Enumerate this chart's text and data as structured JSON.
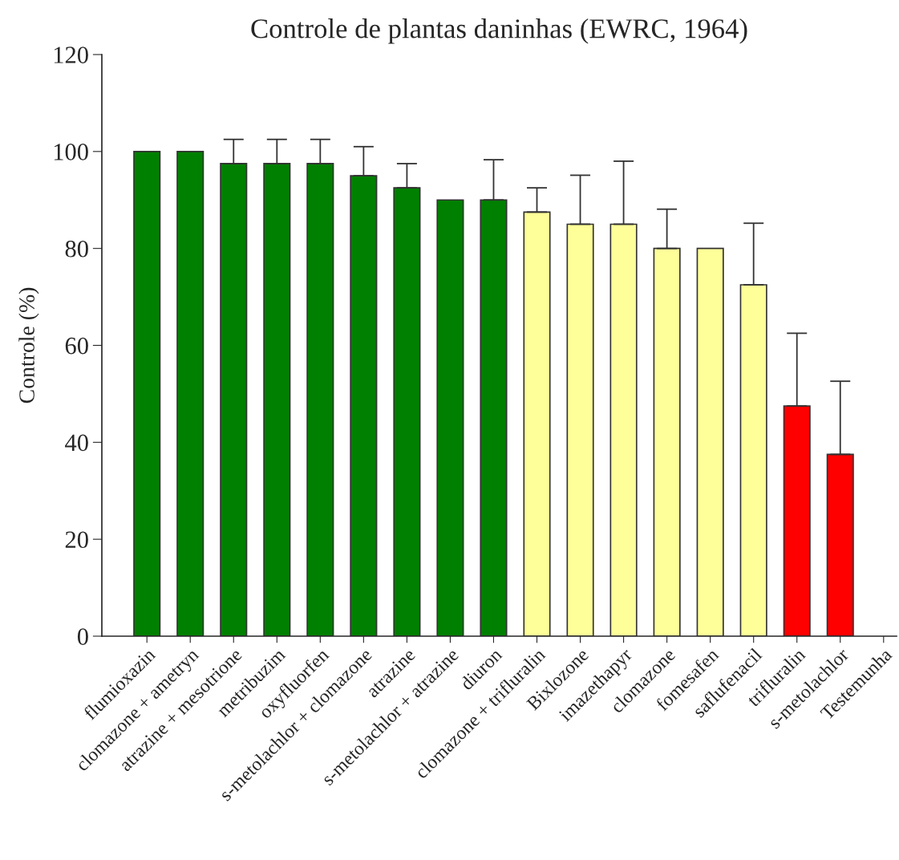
{
  "chart_data": {
    "type": "bar",
    "title": "Controle de plantas daninhas (EWRC, 1964)",
    "ylabel": "Controle (%)",
    "categories": [
      "flumioxazin",
      "clomazone + ametryn",
      "atrazine + mesotrione",
      "metribuzim",
      "oxyfluorfen",
      "s-metolachlor + clomazone",
      "atrazine",
      "s-metolachlor + atrazine",
      "diuron",
      "clomazone + trifluralin",
      "Bixlozone",
      "imazethapyr",
      "clomazone",
      "fomesafen",
      "saflufenacil",
      "trifluralin",
      "s-metolachlor",
      "Testemunha"
    ],
    "values": [
      100,
      100,
      97.5,
      97.5,
      97.5,
      95,
      92.5,
      90,
      90,
      87.5,
      85,
      85,
      80,
      80,
      72.5,
      47.5,
      37.5,
      0
    ],
    "colors": [
      "#008000",
      "#008000",
      "#008000",
      "#008000",
      "#008000",
      "#008000",
      "#008000",
      "#008000",
      "#008000",
      "#ffff99",
      "#ffff99",
      "#ffff99",
      "#ffff99",
      "#ffff99",
      "#ffff99",
      "#ff0000",
      "#ff0000",
      null
    ],
    "errors": [
      null,
      null,
      [
        97.5,
        102.5
      ],
      [
        97.5,
        102.5
      ],
      [
        97.5,
        102.5
      ],
      [
        95,
        101
      ],
      [
        92.5,
        97.5
      ],
      null,
      [
        90,
        98.3
      ],
      [
        87.5,
        92.5
      ],
      [
        85,
        95.1
      ],
      [
        85,
        98
      ],
      [
        80,
        88.1
      ],
      null,
      [
        72.5,
        85.2
      ],
      [
        47.5,
        62.5
      ],
      [
        37.5,
        52.6
      ],
      null
    ],
    "ylim": [
      0,
      120
    ],
    "yticks": [
      0,
      20,
      40,
      60,
      80,
      100,
      120
    ],
    "grid": false,
    "legend": false
  }
}
